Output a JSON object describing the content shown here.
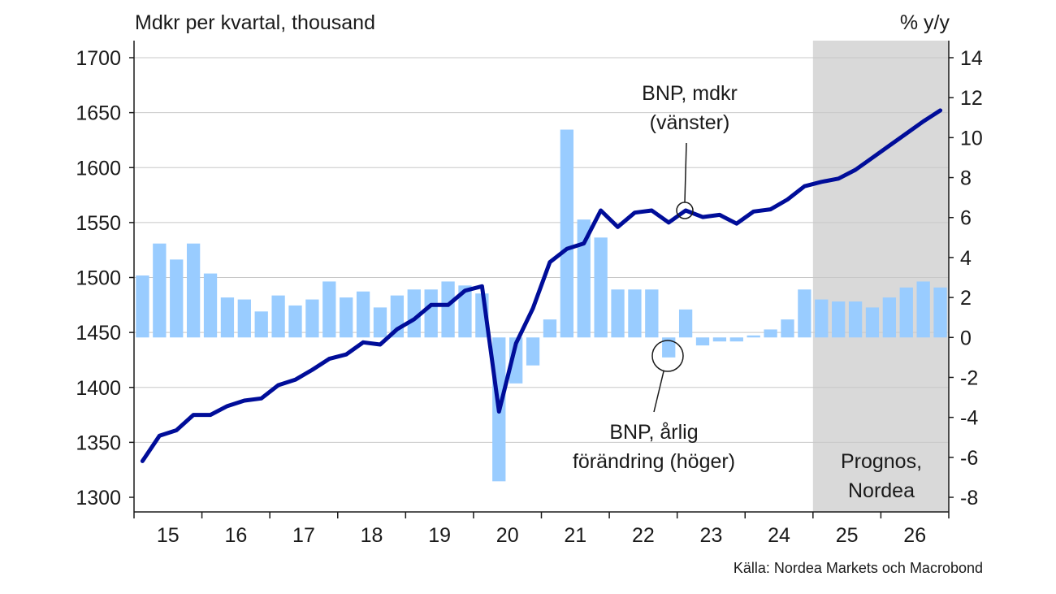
{
  "chart_data": {
    "type": "bar+line",
    "left_axis_title": "Mdkr per kvartal, thousand",
    "right_axis_title": "% y/y",
    "source": "Källa: Nordea Markets och Macrobond",
    "forecast_label_line1": "Prognos,",
    "forecast_label_line2": "Nordea",
    "forecast_start_year": "25",
    "left_axis": {
      "min": 1300,
      "max": 1700,
      "ticks": [
        "1300",
        "1350",
        "1400",
        "1450",
        "1500",
        "1550",
        "1600",
        "1650",
        "1700"
      ]
    },
    "right_axis": {
      "min": -8,
      "max": 14,
      "ticks": [
        "-8",
        "-6",
        "-4",
        "-2",
        "0",
        "2",
        "4",
        "6",
        "8",
        "10",
        "12",
        "14"
      ]
    },
    "years": [
      "15",
      "16",
      "17",
      "18",
      "19",
      "20",
      "21",
      "22",
      "23",
      "24",
      "25",
      "26"
    ],
    "quarters_per_year": 4,
    "series": [
      {
        "name": "BNP, mdkr (vänster)",
        "label_line1": "BNP, mdkr",
        "label_line2": "(vänster)",
        "axis": "left",
        "kind": "line",
        "color": "#000d99",
        "values": [
          1333,
          1356,
          1361,
          1375,
          1375,
          1383,
          1388,
          1390,
          1402,
          1407,
          1416,
          1426,
          1430,
          1441,
          1439,
          1453,
          1462,
          1475,
          1475,
          1488,
          1492,
          1378,
          1440,
          1472,
          1514,
          1526,
          1531,
          1561,
          1546,
          1559,
          1561,
          1550,
          1561,
          1555,
          1557,
          1549,
          1560,
          1562,
          1571,
          1583,
          1587,
          1590,
          1598,
          1609,
          1620,
          1631,
          1642,
          1652
        ]
      },
      {
        "name": "BNP, årlig förändring (höger)",
        "label_line1": "BNP, årlig",
        "label_line2": "förändring (höger)",
        "axis": "right",
        "kind": "bar",
        "color": "#99ccff",
        "values": [
          3.1,
          4.7,
          3.9,
          4.7,
          3.2,
          2.0,
          1.9,
          1.3,
          2.1,
          1.6,
          1.9,
          2.8,
          2.0,
          2.3,
          1.5,
          2.1,
          2.4,
          2.4,
          2.8,
          2.6,
          2.2,
          -7.2,
          -2.3,
          -1.4,
          0.9,
          10.4,
          5.9,
          5.0,
          2.4,
          2.4,
          2.4,
          -1.0,
          1.4,
          -0.4,
          -0.2,
          -0.2,
          0.1,
          0.4,
          0.9,
          2.4,
          1.9,
          1.8,
          1.8,
          1.5,
          2.0,
          2.5,
          2.8,
          2.5
        ]
      }
    ],
    "grid": true
  }
}
